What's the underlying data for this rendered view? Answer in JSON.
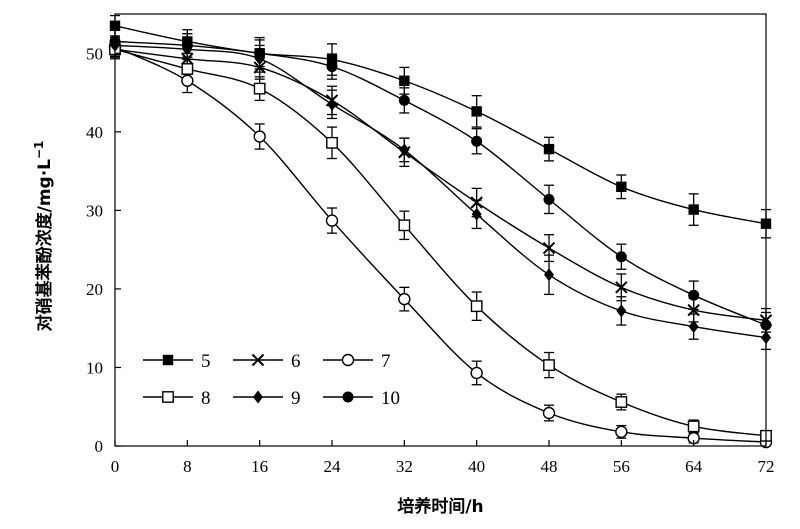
{
  "chart_data": {
    "type": "line",
    "title": "",
    "xlabel": "培养时间/h",
    "ylabel": "对硝基苯酚浓度/mg·L",
    "ylabel_sup": "−1",
    "xlim": [
      0,
      72
    ],
    "ylim": [
      0,
      55
    ],
    "xticks": [
      0,
      8,
      16,
      24,
      32,
      40,
      48,
      56,
      64,
      72
    ],
    "yticks": [
      0,
      10,
      20,
      30,
      40,
      50
    ],
    "grid": false,
    "legend": "bottom-left",
    "x": [
      0,
      8,
      16,
      24,
      32,
      40,
      48,
      56,
      64,
      72
    ],
    "series": [
      {
        "name": "5",
        "marker": "square-filled",
        "values": [
          53.5,
          51.5,
          50.0,
          49.2,
          46.5,
          42.6,
          37.8,
          33.0,
          30.1,
          28.3
        ],
        "errors": [
          1.3,
          1.5,
          2.0,
          2.0,
          1.7,
          2.0,
          1.5,
          1.5,
          2.0,
          1.8
        ]
      },
      {
        "name": "6",
        "marker": "x",
        "values": [
          50.5,
          49.3,
          48.2,
          44.0,
          37.4,
          31.0,
          25.2,
          20.2,
          17.3,
          16.0
        ],
        "errors": [
          1.2,
          2.0,
          1.5,
          1.8,
          1.8,
          1.8,
          1.7,
          1.7,
          1.5,
          1.5
        ]
      },
      {
        "name": "7",
        "marker": "circle-open",
        "values": [
          50.8,
          46.5,
          39.4,
          28.7,
          18.7,
          9.3,
          4.2,
          1.8,
          1.0,
          0.5
        ],
        "errors": [
          1.2,
          1.5,
          1.6,
          1.6,
          1.5,
          1.5,
          1.0,
          0.8,
          0.6,
          0.4
        ]
      },
      {
        "name": "8",
        "marker": "square-open",
        "values": [
          50.5,
          48.0,
          45.5,
          38.6,
          28.1,
          17.8,
          10.3,
          5.6,
          2.5,
          1.3
        ],
        "errors": [
          1.0,
          1.2,
          1.5,
          2.0,
          1.8,
          1.8,
          1.6,
          1.0,
          0.8,
          0.6
        ]
      },
      {
        "name": "9",
        "marker": "diamond-filled",
        "values": [
          51.0,
          50.5,
          49.3,
          43.5,
          37.7,
          29.5,
          21.8,
          17.2,
          15.2,
          13.8
        ],
        "errors": [
          1.2,
          2.0,
          1.7,
          1.8,
          1.5,
          1.8,
          2.5,
          1.8,
          1.6,
          1.5
        ]
      },
      {
        "name": "10",
        "marker": "circle-filled",
        "values": [
          51.5,
          51.0,
          50.0,
          48.3,
          44.0,
          38.8,
          31.4,
          24.1,
          19.2,
          15.4
        ],
        "errors": [
          1.5,
          1.5,
          1.7,
          1.6,
          1.6,
          1.6,
          1.8,
          1.6,
          1.8,
          1.6
        ]
      }
    ]
  }
}
